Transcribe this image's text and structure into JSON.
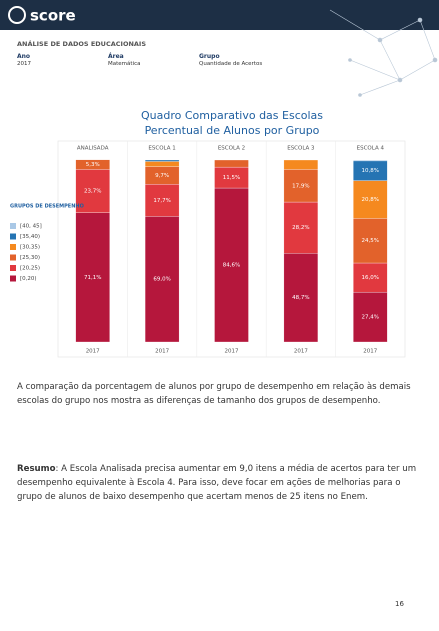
{
  "header": {
    "logo": "score",
    "subtitle": "ANÁLISE DE DADOS EDUCACIONAIS"
  },
  "filters": [
    {
      "label": "Ano",
      "value": "2017"
    },
    {
      "label": "Área",
      "value": "Matemática"
    },
    {
      "label": "Grupo",
      "value": "Quantidade de Acertos"
    }
  ],
  "chart_data": {
    "type": "bar",
    "stacked": true,
    "title": "Quadro Comparativo das Escolas",
    "subtitle": "Percentual de Alunos por Grupo",
    "legend_title": "GRUPOS DE DESEMPENHO",
    "categories": [
      "ANALISADA",
      "ESCOLA 1",
      "ESCOLA 2",
      "ESCOLA 3",
      "ESCOLA 4"
    ],
    "periods": [
      "2017",
      "2017",
      "2017",
      "2017",
      "2017"
    ],
    "ylim": [
      0,
      100
    ],
    "series": [
      {
        "name": "[40, 45]",
        "color": "#a9c8e6",
        "values": [
          0,
          0,
          0,
          0,
          0.5
        ],
        "value_labels": [
          null,
          null,
          null,
          null,
          null
        ]
      },
      {
        "name": "[35,40)",
        "color": "#2574b3",
        "values": [
          0,
          0.8,
          0,
          0,
          10.8
        ],
        "value_labels": [
          null,
          null,
          null,
          null,
          "10,8%"
        ]
      },
      {
        "name": "[30,35)",
        "color": "#f5891f",
        "values": [
          0,
          2.8,
          0,
          5.2,
          20.8
        ],
        "value_labels": [
          null,
          null,
          null,
          null,
          "20,8%"
        ]
      },
      {
        "name": "[25,30)",
        "color": "#e2622b",
        "values": [
          5.3,
          9.7,
          3.9,
          17.9,
          24.5
        ],
        "value_labels": [
          "5,3%",
          "9,7%",
          null,
          "17,9%",
          "24,5%"
        ]
      },
      {
        "name": "[20,25)",
        "color": "#e1393f",
        "values": [
          23.7,
          17.7,
          11.5,
          28.2,
          16.0
        ],
        "value_labels": [
          "23,7%",
          "17,7%",
          "11,5%",
          "28,2%",
          "16,0%"
        ]
      },
      {
        "name": "[0,20)",
        "color": "#b5173c",
        "values": [
          71.1,
          69.0,
          84.6,
          48.7,
          27.4
        ],
        "value_labels": [
          "71,1%",
          "69,0%",
          "84,6%",
          "48,7%",
          "27,4%"
        ]
      }
    ]
  },
  "paragraph": "A comparação da porcentagem de alunos por grupo de desempenho em relação às demais escolas do grupo nos mostra as diferenças de tamanho dos grupos de desempenho.",
  "summary": {
    "label": "Resumo",
    "text": ": A Escola Analisada precisa aumentar em 9,0 itens a média de acertos para ter um desempenho equivalente à Escola 4. Para isso, deve focar em ações de melhorias para o grupo de alunos de baixo desempenho que acertam menos de 25 itens no Enem."
  },
  "page_number": "16"
}
